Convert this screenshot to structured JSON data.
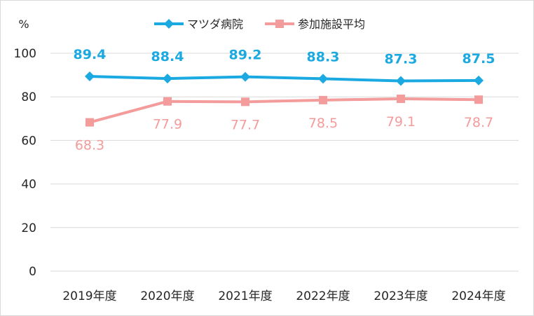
{
  "chart_data": {
    "type": "line",
    "title": "",
    "y_unit": "%",
    "categories": [
      "2019年度",
      "2020年度",
      "2021年度",
      "2022年度",
      "2023年度",
      "2024年度"
    ],
    "ylim": [
      0,
      100
    ],
    "yticks": [
      0,
      20,
      40,
      60,
      80,
      100
    ],
    "grid": true,
    "legend_position": "top-center",
    "series": [
      {
        "name": "マツダ病院",
        "values": [
          89.4,
          88.4,
          89.2,
          88.3,
          87.3,
          87.5
        ],
        "color": "#1aa9e0",
        "marker": "diamond",
        "labels": [
          "89.4",
          "88.4",
          "89.2",
          "88.3",
          "87.3",
          "87.5"
        ]
      },
      {
        "name": "参加施設平均",
        "values": [
          68.3,
          77.9,
          77.7,
          78.5,
          79.1,
          78.7
        ],
        "color": "#f49b9b",
        "marker": "square",
        "labels": [
          "68.3",
          "77.9",
          "77.7",
          "78.5",
          "79.1",
          "78.7"
        ]
      }
    ]
  }
}
